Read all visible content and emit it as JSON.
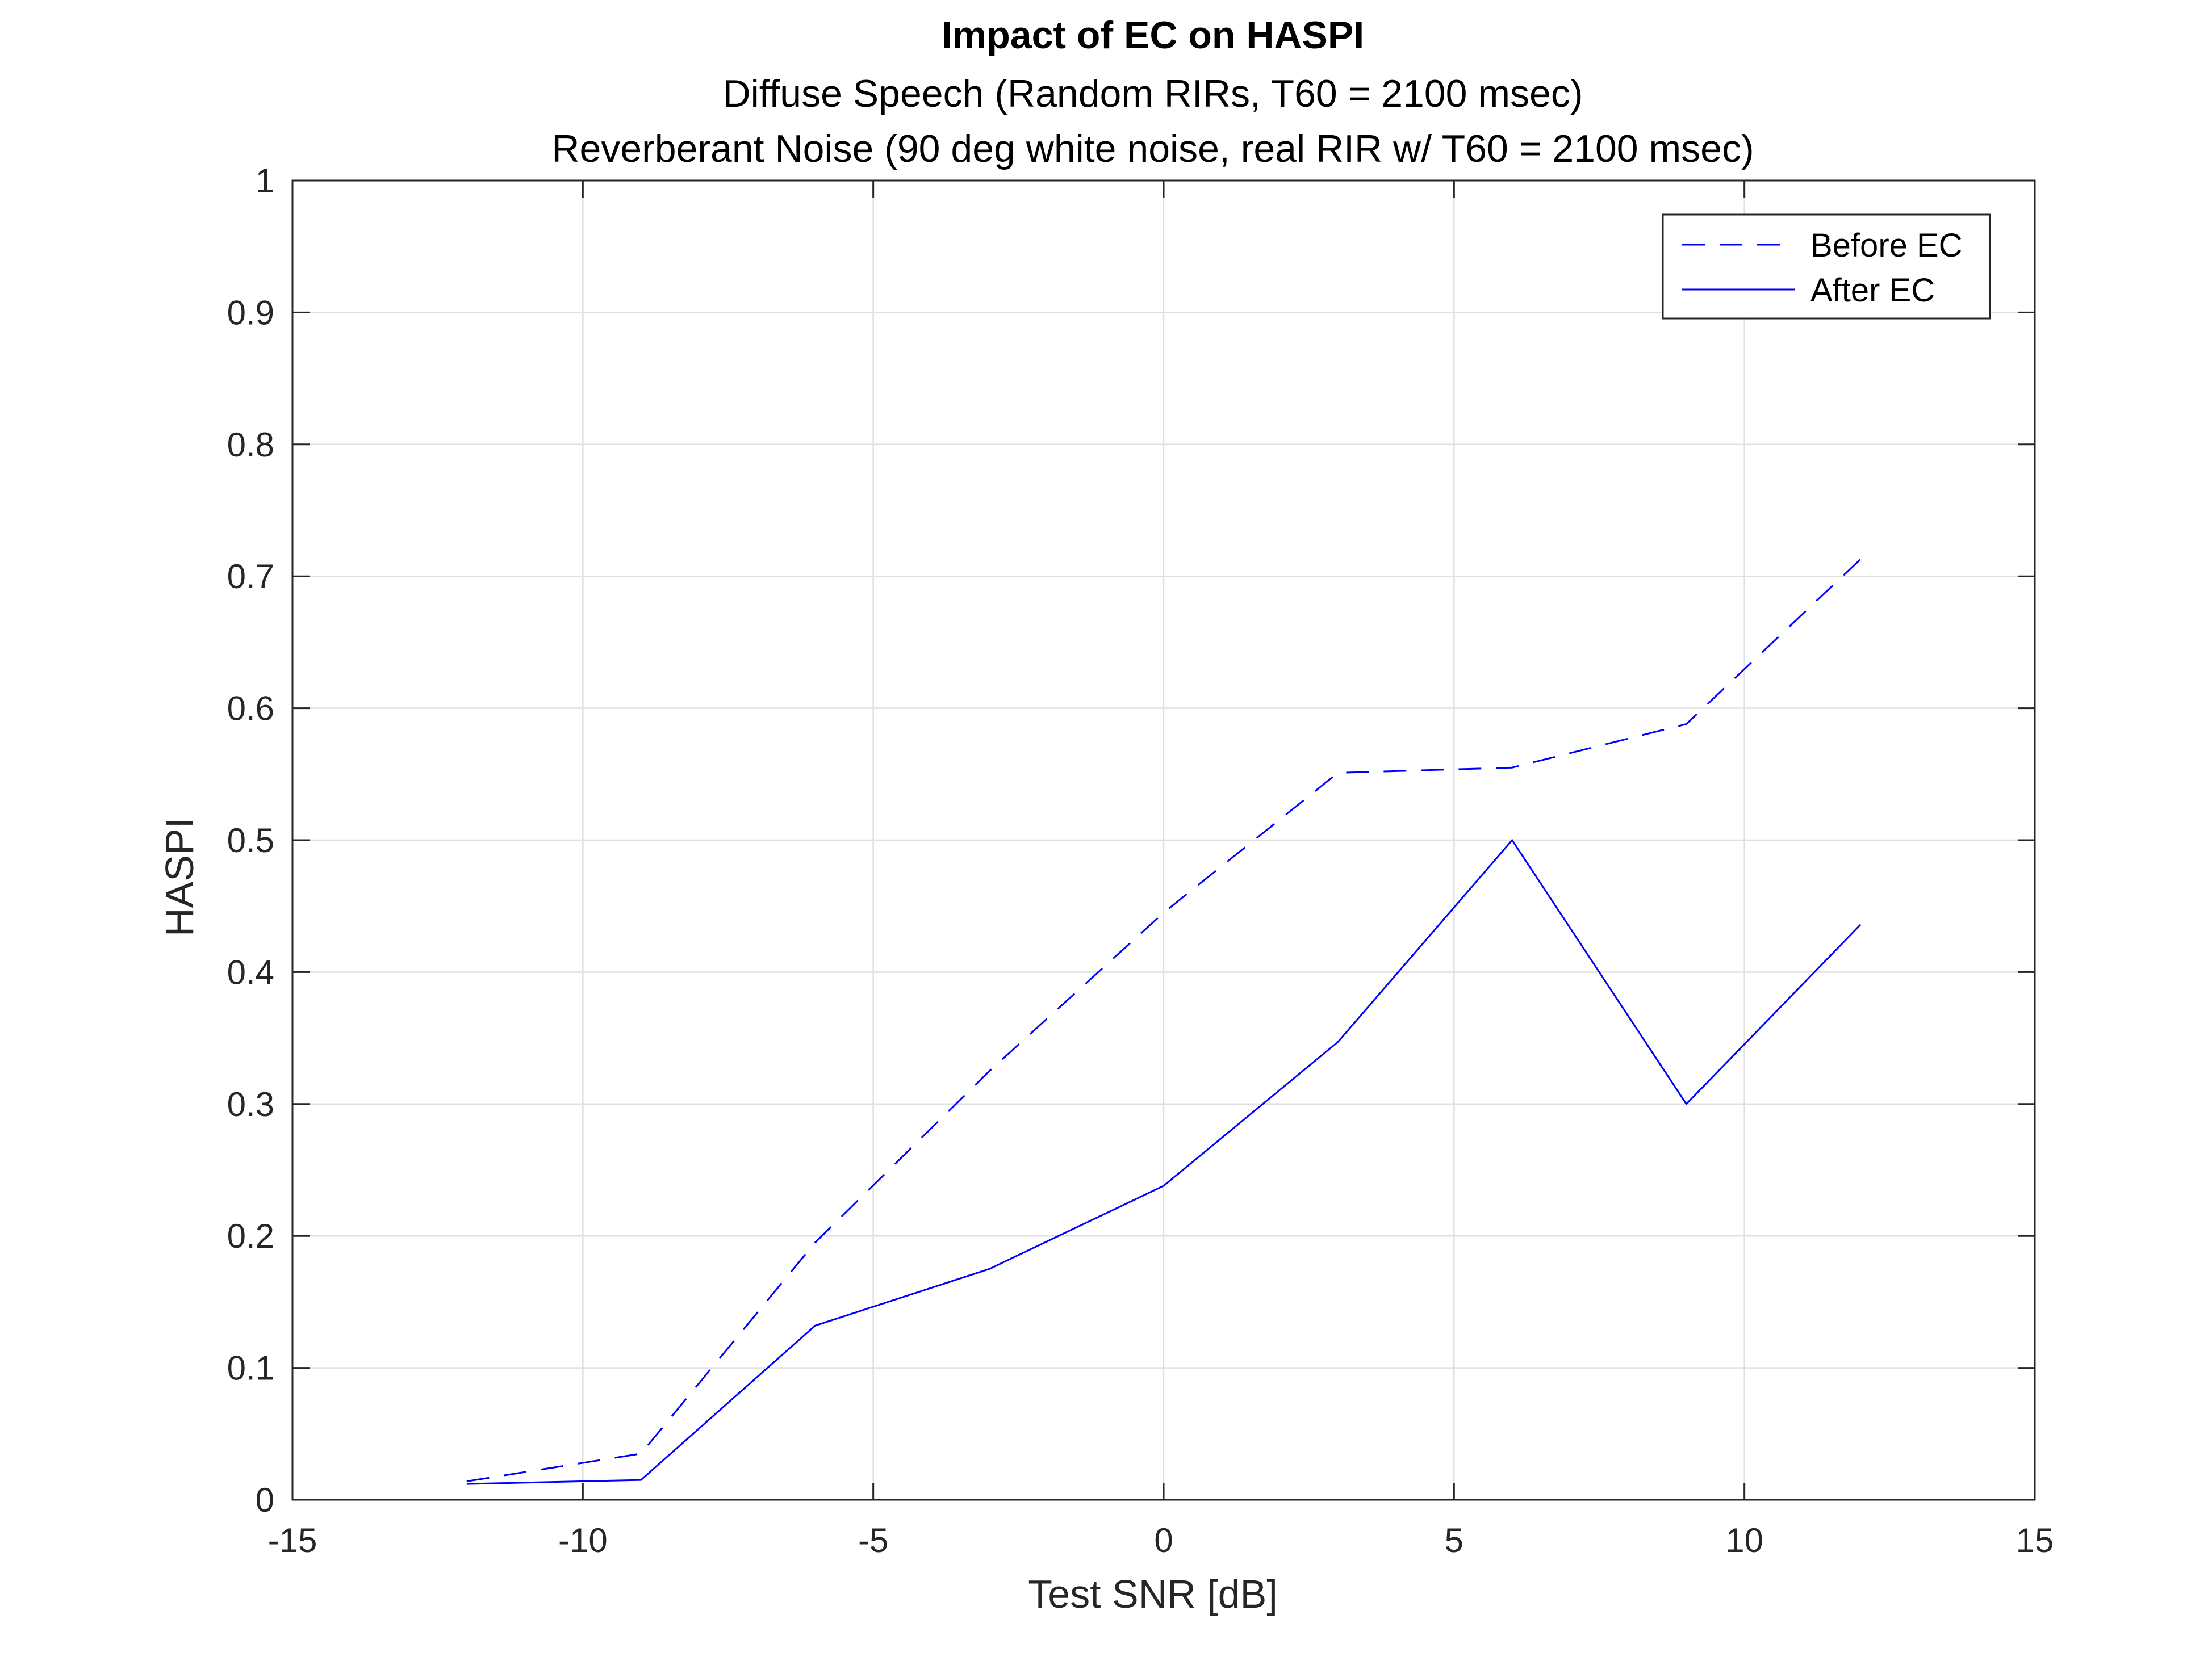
{
  "chart_data": {
    "type": "line",
    "title": "Impact of EC on HASPI",
    "subtitle_lines": [
      "Diffuse Speech (Random RIRs, T60 = 2100 msec)",
      "Reverberant Noise (90 deg white noise, real RIR w/ T60 = 2100 msec)"
    ],
    "xlabel": "Test SNR [dB]",
    "ylabel": "HASPI",
    "xlim": [
      -15,
      15
    ],
    "ylim": [
      0,
      1
    ],
    "xticks": [
      -15,
      -10,
      -5,
      0,
      5,
      10,
      15
    ],
    "xtick_labels": [
      "-15",
      "-10",
      "-5",
      "0",
      "5",
      "10",
      "15"
    ],
    "yticks": [
      0,
      0.1,
      0.2,
      0.3,
      0.4,
      0.5,
      0.6,
      0.7,
      0.8,
      0.9,
      1
    ],
    "ytick_labels": [
      "0",
      "0.1",
      "0.2",
      "0.3",
      "0.4",
      "0.5",
      "0.6",
      "0.7",
      "0.8",
      "0.9",
      "1"
    ],
    "grid": true,
    "legend_position": "top-right",
    "x": [
      -12,
      -9,
      -6,
      -3,
      0,
      3,
      6,
      9,
      12
    ],
    "series": [
      {
        "name": "Before EC",
        "style": "dashed",
        "color": "#0000ff",
        "values": [
          0.014,
          0.035,
          0.195,
          0.325,
          0.445,
          0.551,
          0.555,
          0.588,
          0.713
        ]
      },
      {
        "name": "After EC",
        "style": "solid",
        "color": "#0000ff",
        "values": [
          0.012,
          0.015,
          0.132,
          0.175,
          0.238,
          0.347,
          0.5,
          0.3,
          0.436
        ]
      }
    ]
  }
}
